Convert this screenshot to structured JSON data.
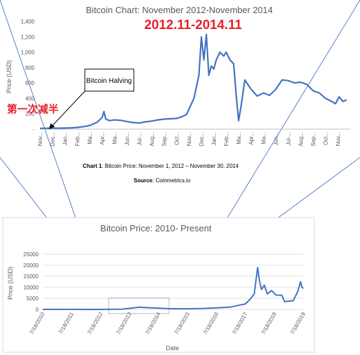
{
  "chart_data": [
    {
      "type": "line",
      "title": "Bitcoin Chart: November 2012-November 2014",
      "ylabel": "Price (USD)",
      "xlabel": "",
      "ylim": [
        0,
        1400
      ],
      "yticks": [
        {
          "value": 0,
          "label": "-"
        },
        {
          "value": 200,
          "label": "200"
        },
        {
          "value": 400,
          "label": "400"
        },
        {
          "value": 600,
          "label": "600"
        },
        {
          "value": 800,
          "label": "800"
        },
        {
          "value": 1000,
          "label": "1,000"
        },
        {
          "value": 1200,
          "label": "1,200"
        },
        {
          "value": 1400,
          "label": "1,400"
        }
      ],
      "xlim": [
        0,
        25
      ],
      "xticks": [
        {
          "value": 0,
          "label": "Nov..."
        },
        {
          "value": 1,
          "label": "Dec..."
        },
        {
          "value": 2,
          "label": "Jan..."
        },
        {
          "value": 3,
          "label": "Feb..."
        },
        {
          "value": 4,
          "label": "Ma..."
        },
        {
          "value": 5,
          "label": "Apr..."
        },
        {
          "value": 6,
          "label": "Ma..."
        },
        {
          "value": 7,
          "label": "Jun..."
        },
        {
          "value": 8,
          "label": "Jul-..."
        },
        {
          "value": 9,
          "label": "Aug..."
        },
        {
          "value": 10,
          "label": "Sep..."
        },
        {
          "value": 11,
          "label": "Oct..."
        },
        {
          "value": 12,
          "label": "Nov..."
        },
        {
          "value": 13,
          "label": "Dec..."
        },
        {
          "value": 14,
          "label": "Jan..."
        },
        {
          "value": 15,
          "label": "Feb..."
        },
        {
          "value": 16,
          "label": "Ma..."
        },
        {
          "value": 17,
          "label": "Apr..."
        },
        {
          "value": 18,
          "label": "Ma..."
        },
        {
          "value": 19,
          "label": "Jun..."
        },
        {
          "value": 20,
          "label": "Jul-..."
        },
        {
          "value": 21,
          "label": "Aug..."
        },
        {
          "value": 22,
          "label": "Sep..."
        },
        {
          "value": 23,
          "label": "Oct..."
        },
        {
          "value": 24,
          "label": "Nov..."
        }
      ],
      "x_unit": "months since Nov 2012",
      "series": [
        {
          "name": "",
          "color": "#4472c4",
          "points": [
            [
              0,
              11
            ],
            [
              0.5,
              12
            ],
            [
              1,
              13
            ],
            [
              1.5,
              13
            ],
            [
              2,
              14
            ],
            [
              2.5,
              17
            ],
            [
              3,
              22
            ],
            [
              3.5,
              32
            ],
            [
              4,
              48
            ],
            [
              4.6,
              90
            ],
            [
              5.0,
              150
            ],
            [
              5.15,
              230
            ],
            [
              5.3,
              130
            ],
            [
              5.6,
              110
            ],
            [
              6,
              120
            ],
            [
              6.5,
              115
            ],
            [
              7,
              100
            ],
            [
              7.5,
              85
            ],
            [
              8,
              80
            ],
            [
              8.5,
              95
            ],
            [
              9,
              105
            ],
            [
              9.5,
              120
            ],
            [
              10,
              130
            ],
            [
              10.5,
              135
            ],
            [
              11,
              140
            ],
            [
              11.4,
              160
            ],
            [
              11.8,
              190
            ],
            [
              12,
              260
            ],
            [
              12.4,
              400
            ],
            [
              12.8,
              700
            ],
            [
              13.0,
              1200
            ],
            [
              13.2,
              900
            ],
            [
              13.4,
              1230
            ],
            [
              13.6,
              700
            ],
            [
              13.8,
              820
            ],
            [
              14.0,
              780
            ],
            [
              14.2,
              900
            ],
            [
              14.5,
              1000
            ],
            [
              14.8,
              950
            ],
            [
              15.0,
              1000
            ],
            [
              15.3,
              900
            ],
            [
              15.6,
              850
            ],
            [
              15.8,
              450
            ],
            [
              16.0,
              110
            ],
            [
              16.2,
              300
            ],
            [
              16.5,
              640
            ],
            [
              17,
              520
            ],
            [
              17.5,
              430
            ],
            [
              18,
              470
            ],
            [
              18.5,
              440
            ],
            [
              19,
              520
            ],
            [
              19.5,
              640
            ],
            [
              20,
              630
            ],
            [
              20.5,
              600
            ],
            [
              21,
              610
            ],
            [
              21.5,
              580
            ],
            [
              22,
              500
            ],
            [
              22.5,
              470
            ],
            [
              23,
              400
            ],
            [
              23.5,
              360
            ],
            [
              23.8,
              330
            ],
            [
              24.1,
              420
            ],
            [
              24.4,
              360
            ],
            [
              24.7,
              380
            ]
          ]
        }
      ],
      "annotations": [
        {
          "text": "2012.11-2014.11",
          "color": "#e8202a"
        },
        {
          "text": "Bitcoin Halving"
        },
        {
          "text": "第一次减半",
          "color": "#e8202a"
        }
      ]
    },
    {
      "type": "line",
      "title": "Bitcoin Price: 2010- Present",
      "xlabel": "Date",
      "ylabel": "Price (USD)",
      "ylim": [
        0,
        25000
      ],
      "yticks": [
        0,
        5000,
        10000,
        15000,
        20000,
        25000
      ],
      "xlim": [
        2010.55,
        2019.55
      ],
      "xticks": [
        {
          "value": 2010.55,
          "label": "7/18/2010"
        },
        {
          "value": 2011.55,
          "label": "7/18/2011"
        },
        {
          "value": 2012.55,
          "label": "7/18/2012"
        },
        {
          "value": 2013.55,
          "label": "7/18/2013"
        },
        {
          "value": 2014.55,
          "label": "7/18/2014"
        },
        {
          "value": 2015.55,
          "label": "7/18/2015"
        },
        {
          "value": 2016.55,
          "label": "7/18/2016"
        },
        {
          "value": 2017.55,
          "label": "7/18/2017"
        },
        {
          "value": 2018.55,
          "label": "7/18/2018"
        },
        {
          "value": 2019.55,
          "label": "7/18/2019"
        }
      ],
      "series": [
        {
          "name": "",
          "color": "#4472c4",
          "points": [
            [
              2010.55,
              0
            ],
            [
              2011.4,
              20
            ],
            [
              2012.5,
              10
            ],
            [
              2013.3,
              120
            ],
            [
              2013.9,
              1000
            ],
            [
              2014.0,
              900
            ],
            [
              2014.5,
              600
            ],
            [
              2015.0,
              300
            ],
            [
              2015.5,
              280
            ],
            [
              2016.0,
              400
            ],
            [
              2016.5,
              650
            ],
            [
              2017.0,
              1000
            ],
            [
              2017.3,
              1800
            ],
            [
              2017.55,
              2500
            ],
            [
              2017.7,
              4500
            ],
            [
              2017.85,
              7000
            ],
            [
              2017.97,
              19000
            ],
            [
              2018.03,
              13000
            ],
            [
              2018.1,
              9000
            ],
            [
              2018.2,
              11000
            ],
            [
              2018.3,
              7000
            ],
            [
              2018.45,
              8500
            ],
            [
              2018.6,
              6500
            ],
            [
              2018.8,
              6400
            ],
            [
              2018.9,
              3500
            ],
            [
              2019.0,
              3700
            ],
            [
              2019.2,
              4000
            ],
            [
              2019.35,
              8000
            ],
            [
              2019.45,
              12500
            ],
            [
              2019.5,
              10000
            ],
            [
              2019.55,
              9500
            ]
          ]
        }
      ],
      "highlight_range": {
        "x": [
          2012.83,
          2014.91
        ],
        "y": [
          0,
          1400
        ]
      }
    }
  ],
  "caption": {
    "chart_label": "Chart 1",
    "chart_text": ": Bitcoin Price: November 1, 2012 – November 30, 2014",
    "source_label": "Source",
    "source_text": ": Coinmetrics.io"
  },
  "colors": {
    "line": "#4472c4",
    "connector": "#4472c4",
    "red": "#e8202a",
    "frame": "#d9d9d9",
    "grid": "#d9d9d9"
  }
}
